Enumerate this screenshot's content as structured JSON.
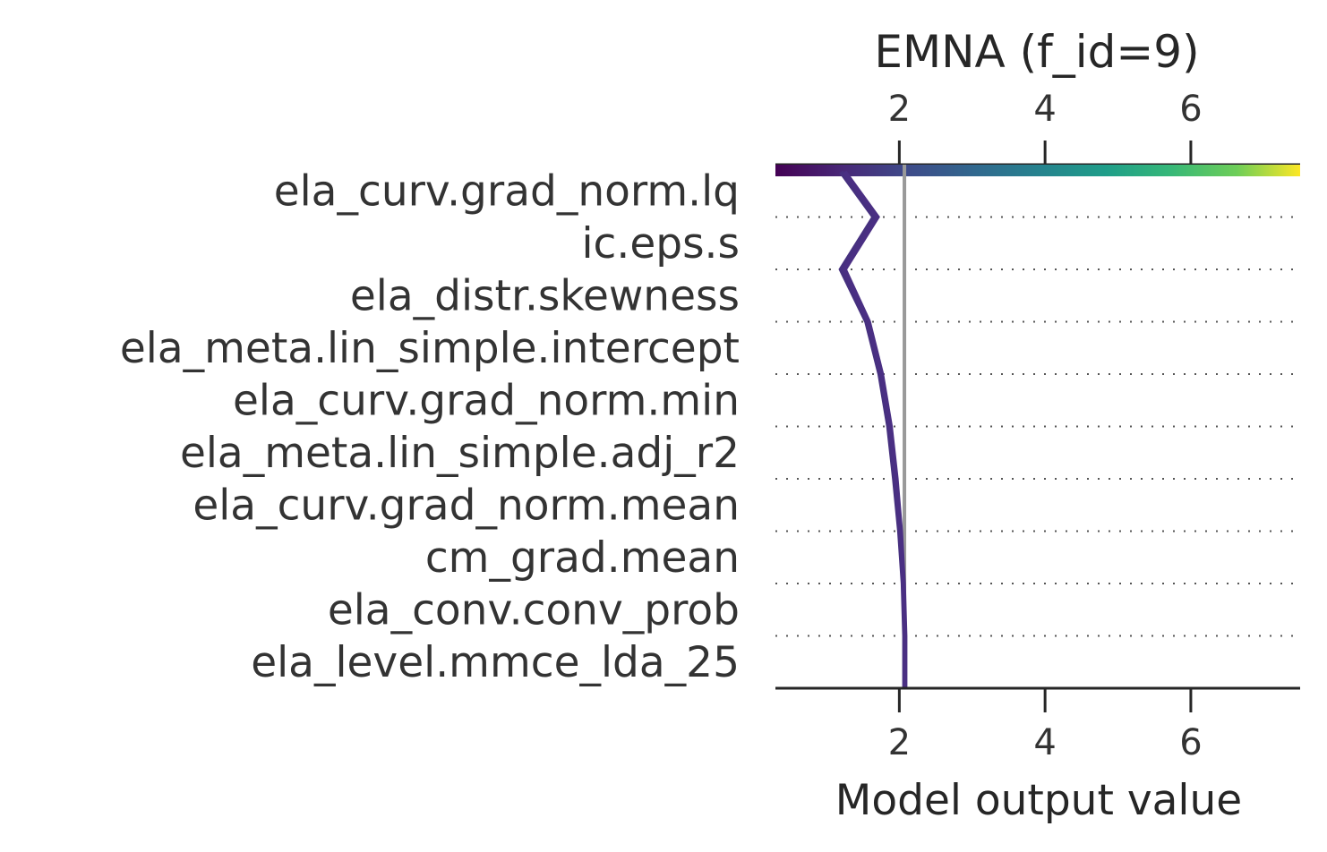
{
  "chart_data": {
    "type": "line",
    "title": "EMNA (f_id=9)",
    "xlabel": "Model output value",
    "ylabel": "",
    "xlim": [
      0.3,
      7.5
    ],
    "xticks": [
      2,
      4,
      6
    ],
    "base_value": 2.07,
    "features": [
      "ela_curv.grad_norm.lq",
      "ic.eps.s",
      "ela_distr.skewness",
      "ela_meta.lin_simple.intercept",
      "ela_curv.grad_norm.min",
      "ela_meta.lin_simple.adj_r2",
      "ela_curv.grad_norm.mean",
      "cm_grad.mean",
      "ela_conv.conv_prob",
      "ela_level.mmce_lda_25"
    ],
    "series": [
      {
        "values": [
          1.2,
          1.65,
          1.2,
          1.55,
          1.73,
          1.85,
          1.93,
          2.0,
          2.05,
          2.07,
          2.07
        ]
      },
      {
        "values": [
          1.25,
          1.7,
          1.25,
          1.58,
          1.76,
          1.88,
          1.96,
          2.02,
          2.06,
          2.08,
          2.08
        ]
      }
    ],
    "colorbar": {
      "colormap": "viridis",
      "range": [
        0.3,
        7.5
      ]
    },
    "grid": "dotted horizontal"
  }
}
